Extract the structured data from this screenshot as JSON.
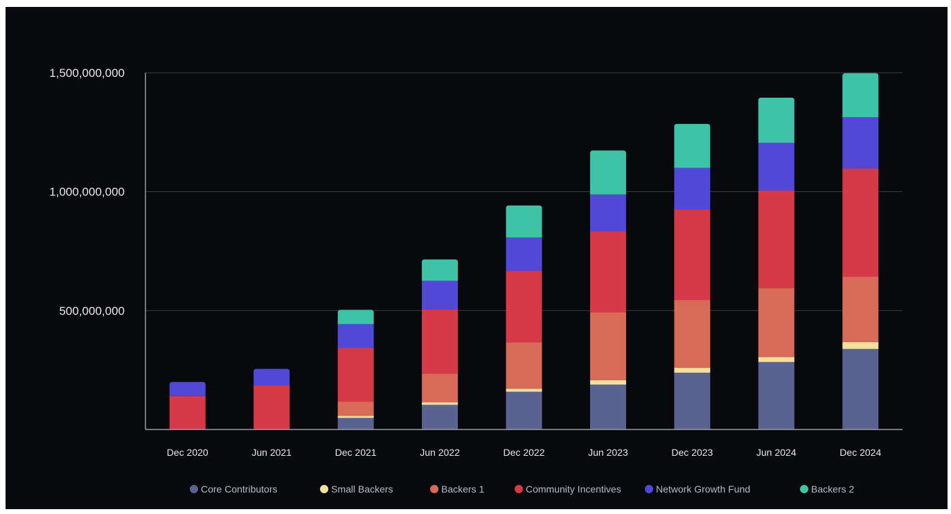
{
  "chart_data": {
    "type": "bar",
    "stacked": true,
    "title": "",
    "xlabel": "",
    "ylabel": "",
    "ylim": [
      0,
      1500000000
    ],
    "y_ticks": [
      {
        "value": 500000000,
        "label": "500,000,000"
      },
      {
        "value": 1000000000,
        "label": "1,000,000,000"
      },
      {
        "value": 1500000000,
        "label": "1,500,000,000"
      }
    ],
    "grid": true,
    "legend_position": "bottom",
    "categories": [
      "Dec 2020",
      "Jun 2021",
      "Dec 2021",
      "Jun 2022",
      "Dec 2022",
      "Jun 2023",
      "Dec 2023",
      "Jun 2024",
      "Dec 2024"
    ],
    "series": [
      {
        "name": "Core Contributors",
        "color": "#5a6290",
        "values": [
          0,
          0,
          50000000,
          105000000,
          160000000,
          190000000,
          240000000,
          285000000,
          340000000
        ]
      },
      {
        "name": "Small Backers",
        "color": "#f2e09c",
        "values": [
          0,
          0,
          8000000,
          10000000,
          12000000,
          18000000,
          20000000,
          20000000,
          28000000
        ]
      },
      {
        "name": "Backers 1",
        "color": "#d76b58",
        "values": [
          0,
          0,
          60000000,
          120000000,
          195000000,
          285000000,
          285000000,
          290000000,
          275000000
        ]
      },
      {
        "name": "Community Incentives",
        "color": "#d63a48",
        "values": [
          140000000,
          185000000,
          225000000,
          270000000,
          300000000,
          340000000,
          380000000,
          410000000,
          455000000
        ]
      },
      {
        "name": "Network Growth Fund",
        "color": "#5148d8",
        "values": [
          60000000,
          70000000,
          100000000,
          120000000,
          140000000,
          155000000,
          175000000,
          200000000,
          215000000
        ]
      },
      {
        "name": "Backers 2",
        "color": "#3fc3a7",
        "values": [
          0,
          0,
          60000000,
          90000000,
          135000000,
          185000000,
          185000000,
          190000000,
          185000000
        ]
      }
    ]
  }
}
